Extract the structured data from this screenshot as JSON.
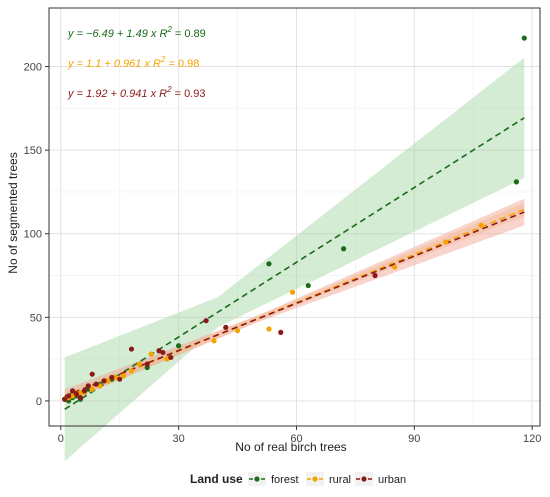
{
  "chart_data": {
    "type": "scatter",
    "xlabel": "No of real birch trees",
    "ylabel": "No of segmented trees",
    "xlim": [
      -3,
      122
    ],
    "ylim": [
      -15,
      235
    ],
    "xticks": [
      0,
      30,
      60,
      90,
      120
    ],
    "yticks": [
      0,
      50,
      100,
      150,
      200
    ],
    "grid": true,
    "legend": {
      "position": "bottom",
      "title": "Land use",
      "entries": [
        "forest",
        "rural",
        "urban"
      ]
    },
    "equations": [
      {
        "series": "forest",
        "eq": "y = −6.49 + 1.49 x",
        "r2_label": "R",
        "r2_exp": "2",
        "r2_val": " = 0.89"
      },
      {
        "series": "rural",
        "eq": "y = 1.1 + 0.961 x",
        "r2_label": "R",
        "r2_exp": "2",
        "r2_val": " = 0.98"
      },
      {
        "series": "urban",
        "eq": "y = 1.92 + 0.941 x",
        "r2_label": "R",
        "r2_exp": "2",
        "r2_val": " = 0.93"
      }
    ],
    "series": [
      {
        "name": "forest",
        "color": "#1a6b1a",
        "band_color": "#9fd39f",
        "intercept": -6.49,
        "slope": 1.49,
        "fit_range": [
          1,
          118
        ],
        "band_half_width": [
          [
            1,
            31
          ],
          [
            40,
            9
          ],
          [
            118,
            36
          ]
        ],
        "points": [
          [
            1,
            1
          ],
          [
            2,
            0
          ],
          [
            3,
            2
          ],
          [
            3,
            4
          ],
          [
            4,
            3
          ],
          [
            5,
            1
          ],
          [
            6,
            5
          ],
          [
            7,
            7
          ],
          [
            10,
            10
          ],
          [
            13,
            13
          ],
          [
            22,
            20
          ],
          [
            30,
            33
          ],
          [
            53,
            82
          ],
          [
            63,
            69
          ],
          [
            72,
            91
          ],
          [
            116,
            131
          ],
          [
            118,
            217
          ]
        ]
      },
      {
        "name": "rural",
        "color": "#f5a300",
        "band_color": "#f6c98a",
        "intercept": 1.1,
        "slope": 0.961,
        "fit_range": [
          1,
          118
        ],
        "band_half_width": [
          [
            1,
            3
          ],
          [
            60,
            1.5
          ],
          [
            118,
            4
          ]
        ],
        "points": [
          [
            1,
            1
          ],
          [
            2,
            2
          ],
          [
            3,
            3
          ],
          [
            4,
            4
          ],
          [
            5,
            5
          ],
          [
            6,
            5
          ],
          [
            8,
            7
          ],
          [
            10,
            9
          ],
          [
            12,
            12
          ],
          [
            14,
            14
          ],
          [
            16,
            15
          ],
          [
            18,
            18
          ],
          [
            20,
            22
          ],
          [
            23,
            28
          ],
          [
            27,
            25
          ],
          [
            39,
            36
          ],
          [
            45,
            42
          ],
          [
            53,
            43
          ],
          [
            59,
            65
          ],
          [
            85,
            80
          ],
          [
            98,
            95
          ],
          [
            107,
            105
          ]
        ]
      },
      {
        "name": "urban",
        "color": "#8b1a1a",
        "band_color": "#f0a090",
        "intercept": 1.92,
        "slope": 0.941,
        "fit_range": [
          1,
          118
        ],
        "band_half_width": [
          [
            1,
            4
          ],
          [
            50,
            2
          ],
          [
            118,
            8
          ]
        ],
        "points": [
          [
            1,
            1
          ],
          [
            2,
            3
          ],
          [
            3,
            6
          ],
          [
            4,
            4
          ],
          [
            5,
            2
          ],
          [
            6,
            6
          ],
          [
            7,
            9
          ],
          [
            8,
            16
          ],
          [
            9,
            10
          ],
          [
            11,
            12
          ],
          [
            13,
            14
          ],
          [
            15,
            13
          ],
          [
            18,
            31
          ],
          [
            22,
            22
          ],
          [
            25,
            30
          ],
          [
            26,
            29
          ],
          [
            28,
            26
          ],
          [
            37,
            48
          ],
          [
            42,
            44
          ],
          [
            56,
            41
          ],
          [
            80,
            75
          ]
        ]
      }
    ]
  }
}
